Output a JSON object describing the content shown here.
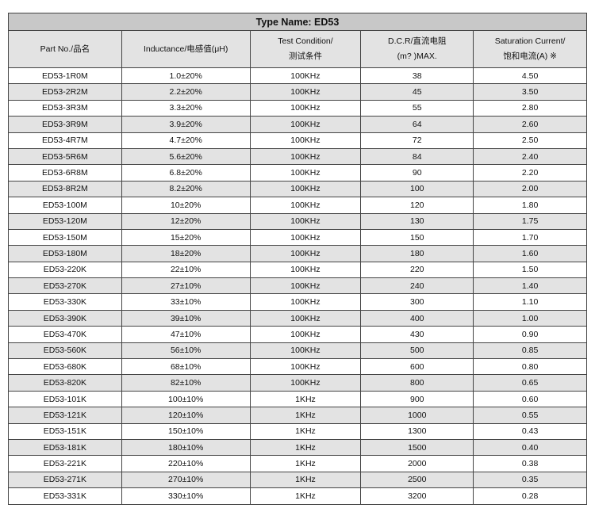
{
  "title": "Type Name: ED53",
  "headers": [
    "Part No./品名",
    "Inductance/电感值(μH)",
    "Test Condition/",
    "测试条件",
    "D.C.R/直流电阻",
    "(m? )MAX.",
    "Saturation Current/",
    "饱和电流(A) ※"
  ],
  "rows": [
    [
      "ED53-1R0M",
      "1.0±20%",
      "100KHz",
      "38",
      "4.50"
    ],
    [
      "ED53-2R2M",
      "2.2±20%",
      "100KHz",
      "45",
      "3.50"
    ],
    [
      "ED53-3R3M",
      "3.3±20%",
      "100KHz",
      "55",
      "2.80"
    ],
    [
      "ED53-3R9M",
      "3.9±20%",
      "100KHz",
      "64",
      "2.60"
    ],
    [
      "ED53-4R7M",
      "4.7±20%",
      "100KHz",
      "72",
      "2.50"
    ],
    [
      "ED53-5R6M",
      "5.6±20%",
      "100KHz",
      "84",
      "2.40"
    ],
    [
      "ED53-6R8M",
      "6.8±20%",
      "100KHz",
      "90",
      "2.20"
    ],
    [
      "ED53-8R2M",
      "8.2±20%",
      "100KHz",
      "100",
      "2.00"
    ],
    [
      "ED53-100M",
      "10±20%",
      "100KHz",
      "120",
      "1.80"
    ],
    [
      "ED53-120M",
      "12±20%",
      "100KHz",
      "130",
      "1.75"
    ],
    [
      "ED53-150M",
      "15±20%",
      "100KHz",
      "150",
      "1.70"
    ],
    [
      "ED53-180M",
      "18±20%",
      "100KHz",
      "180",
      "1.60"
    ],
    [
      "ED53-220K",
      "22±10%",
      "100KHz",
      "220",
      "1.50"
    ],
    [
      "ED53-270K",
      "27±10%",
      "100KHz",
      "240",
      "1.40"
    ],
    [
      "ED53-330K",
      "33±10%",
      "100KHz",
      "300",
      "1.10"
    ],
    [
      "ED53-390K",
      "39±10%",
      "100KHz",
      "400",
      "1.00"
    ],
    [
      "ED53-470K",
      "47±10%",
      "100KHz",
      "430",
      "0.90"
    ],
    [
      "ED53-560K",
      "56±10%",
      "100KHz",
      "500",
      "0.85"
    ],
    [
      "ED53-680K",
      "68±10%",
      "100KHz",
      "600",
      "0.80"
    ],
    [
      "ED53-820K",
      "82±10%",
      "100KHz",
      "800",
      "0.65"
    ],
    [
      "ED53-101K",
      "100±10%",
      "1KHz",
      "900",
      "0.60"
    ],
    [
      "ED53-121K",
      "120±10%",
      "1KHz",
      "1000",
      "0.55"
    ],
    [
      "ED53-151K",
      "150±10%",
      "1KHz",
      "1300",
      "0.43"
    ],
    [
      "ED53-181K",
      "180±10%",
      "1KHz",
      "1500",
      "0.40"
    ],
    [
      "ED53-221K",
      "220±10%",
      "1KHz",
      "2000",
      "0.38"
    ],
    [
      "ED53-271K",
      "270±10%",
      "1KHz",
      "2500",
      "0.35"
    ],
    [
      "ED53-331K",
      "330±10%",
      "1KHz",
      "3200",
      "0.28"
    ]
  ]
}
